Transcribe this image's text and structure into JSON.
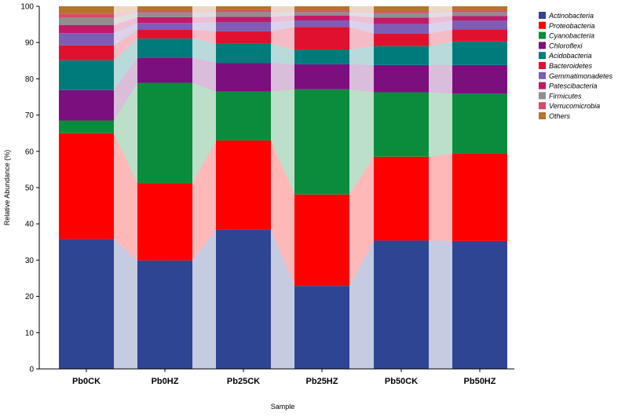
{
  "chart_data": {
    "type": "stacked-bar",
    "xlabel": "Sample",
    "ylabel": "Relative Abundance (%)",
    "ylim": [
      0,
      100
    ],
    "yticks": [
      0,
      10,
      20,
      30,
      40,
      50,
      60,
      70,
      80,
      90,
      100
    ],
    "categories": [
      "Pb0CK",
      "Pb0HZ",
      "Pb25CK",
      "Pb25HZ",
      "Pb50CK",
      "Pb50HZ"
    ],
    "legend_position": "top-right",
    "series": [
      {
        "name": "Actinobacteria",
        "color": "#2e4593",
        "values": [
          35.8,
          29.9,
          38.4,
          22.9,
          35.4,
          35.3
        ]
      },
      {
        "name": "Proteobacteria",
        "color": "#ff0000",
        "values": [
          29.2,
          21.3,
          24.6,
          25.2,
          23.1,
          24.1
        ]
      },
      {
        "name": "Cyanobacteria",
        "color": "#0b8c3d",
        "values": [
          3.5,
          27.7,
          13.5,
          29.0,
          17.8,
          16.5
        ]
      },
      {
        "name": "Chloroflexi",
        "color": "#7b0f7e",
        "values": [
          8.4,
          6.9,
          7.9,
          6.9,
          7.5,
          7.9
        ]
      },
      {
        "name": "Acidobacteria",
        "color": "#007b7b",
        "values": [
          8.2,
          5.3,
          5.3,
          4.0,
          5.2,
          6.5
        ]
      },
      {
        "name": "Bacteroidetes",
        "color": "#e0102e",
        "values": [
          4.1,
          2.4,
          3.4,
          6.3,
          3.5,
          3.3
        ]
      },
      {
        "name": "Gemmatimonadetes",
        "color": "#7d5db6",
        "values": [
          3.4,
          1.9,
          2.5,
          1.8,
          2.6,
          2.5
        ]
      },
      {
        "name": "Patescibacteria",
        "color": "#c21968",
        "values": [
          2.2,
          1.6,
          1.5,
          1.3,
          1.8,
          1.2
        ]
      },
      {
        "name": "Firmicutes",
        "color": "#8f8f8f",
        "values": [
          2.0,
          1.3,
          1.3,
          1.0,
          1.2,
          1.1
        ]
      },
      {
        "name": "Verrucomicrobia",
        "color": "#d84a6a",
        "values": [
          1.2,
          0.5,
          0.6,
          0.5,
          0.5,
          0.5
        ]
      },
      {
        "name": "Others",
        "color": "#b5742a",
        "values": [
          2.0,
          1.2,
          1.0,
          1.1,
          1.4,
          1.1
        ]
      }
    ]
  }
}
